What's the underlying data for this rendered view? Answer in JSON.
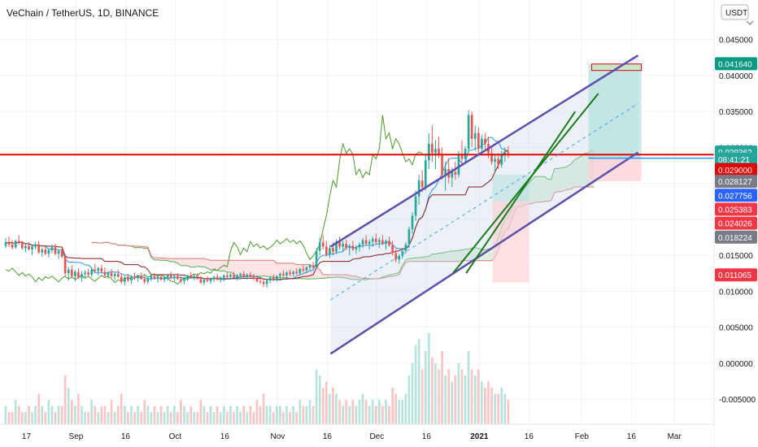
{
  "header": {
    "symbol_line": "VeChain / TetherUS, 1D, BINANCE"
  },
  "currency_button": {
    "label": "USDT",
    "arrow": "chevron-down"
  },
  "x_axis": {
    "ticks": [
      {
        "label": "17",
        "date": "2020-08-17"
      },
      {
        "label": "Sep",
        "date": "2020-09-01"
      },
      {
        "label": "16",
        "date": "2020-09-16"
      },
      {
        "label": "Oct",
        "date": "2020-10-01"
      },
      {
        "label": "16",
        "date": "2020-10-16"
      },
      {
        "label": "Nov",
        "date": "2020-11-01"
      },
      {
        "label": "16",
        "date": "2020-11-16"
      },
      {
        "label": "Dec",
        "date": "2020-12-01"
      },
      {
        "label": "16",
        "date": "2020-12-16"
      },
      {
        "label": "2021",
        "date": "2021-01-01"
      },
      {
        "label": "16",
        "date": "2021-01-16"
      },
      {
        "label": "Feb",
        "date": "2021-02-01"
      },
      {
        "label": "16",
        "date": "2021-02-16"
      },
      {
        "label": "Mar",
        "date": "2021-03-01"
      }
    ]
  },
  "y_axis": {
    "ticks": [
      "0.045000",
      "0.040000",
      "0.035000",
      "0.030000",
      "0.025000",
      "0.020000",
      "0.015000",
      "0.010000",
      "0.005000",
      "0.000000",
      "-0.005000"
    ],
    "range": [
      -0.0085,
      0.0505
    ]
  },
  "price_tags": [
    {
      "label": "0.041640",
      "value": 0.04164,
      "bg": "#089981"
    },
    {
      "label": "0.029362",
      "value": 0.02936,
      "bg": "#26a69a"
    },
    {
      "label": "08:41:21",
      "value": 0.02836,
      "bg": "#26a69a"
    },
    {
      "label": "0.029000",
      "value": 0.0269,
      "bg": "#e00000"
    },
    {
      "label": "0.028127",
      "value": 0.02528,
      "bg": "#787b86"
    },
    {
      "label": "0.027756",
      "value": 0.02334,
      "bg": "#2962ff"
    },
    {
      "label": "0.025383",
      "value": 0.0214,
      "bg": "#f23645"
    },
    {
      "label": "0.024026",
      "value": 0.01946,
      "bg": "#f23645"
    },
    {
      "label": "0.018224",
      "value": 0.01752,
      "bg": "#787b86"
    },
    {
      "label": "0.011065",
      "value": 0.01227,
      "bg": "#f23645"
    }
  ],
  "colors": {
    "up": "#26a69a",
    "down": "#ef5350",
    "support": "#e00000",
    "channel": "#5e4fa8",
    "green_lines": "#1b7a1b",
    "lagging": "#4c9a2a",
    "tenkan": "#2196f3",
    "kijun": "#8b1a1a",
    "cloud_green": "#c8e6c9",
    "cloud_red": "#ffcdd2",
    "target_fill": "#b2dfdb",
    "stop_fill": "#ffcdd2"
  },
  "chart_data": {
    "type": "candlestick",
    "title": "VeChain / TetherUS, 1D, BINANCE",
    "x_start": "2020-08-10",
    "ohlc": [
      [
        0.0163,
        0.0174,
        0.016,
        0.0168
      ],
      [
        0.0168,
        0.0176,
        0.0162,
        0.0165
      ],
      [
        0.0165,
        0.0171,
        0.0158,
        0.0161
      ],
      [
        0.0161,
        0.0172,
        0.0159,
        0.017
      ],
      [
        0.017,
        0.0178,
        0.0165,
        0.0167
      ],
      [
        0.0167,
        0.017,
        0.0158,
        0.016
      ],
      [
        0.016,
        0.0166,
        0.0154,
        0.0163
      ],
      [
        0.0163,
        0.0168,
        0.0157,
        0.0158
      ],
      [
        0.0158,
        0.0165,
        0.015,
        0.0162
      ],
      [
        0.0162,
        0.0169,
        0.0158,
        0.0165
      ],
      [
        0.0165,
        0.017,
        0.0152,
        0.0154
      ],
      [
        0.0154,
        0.0161,
        0.0148,
        0.0158
      ],
      [
        0.0158,
        0.0163,
        0.015,
        0.0152
      ],
      [
        0.0152,
        0.016,
        0.0147,
        0.0157
      ],
      [
        0.0157,
        0.0165,
        0.0153,
        0.0161
      ],
      [
        0.0161,
        0.0166,
        0.015,
        0.0152
      ],
      [
        0.0152,
        0.0158,
        0.0145,
        0.0156
      ],
      [
        0.0156,
        0.016,
        0.0146,
        0.0148
      ],
      [
        0.0148,
        0.0152,
        0.012,
        0.0125
      ],
      [
        0.0125,
        0.0134,
        0.0115,
        0.013
      ],
      [
        0.013,
        0.0136,
        0.0118,
        0.0121
      ],
      [
        0.0121,
        0.013,
        0.0114,
        0.0127
      ],
      [
        0.0127,
        0.0132,
        0.0117,
        0.0119
      ],
      [
        0.0119,
        0.0128,
        0.0113,
        0.0124
      ],
      [
        0.0124,
        0.0129,
        0.0118,
        0.0126
      ],
      [
        0.0126,
        0.0131,
        0.0121,
        0.0123
      ],
      [
        0.0123,
        0.0132,
        0.012,
        0.013
      ],
      [
        0.013,
        0.0138,
        0.0126,
        0.0128
      ],
      [
        0.0128,
        0.0134,
        0.0122,
        0.0132
      ],
      [
        0.0132,
        0.0137,
        0.0125,
        0.0127
      ],
      [
        0.0127,
        0.0133,
        0.012,
        0.0122
      ],
      [
        0.0122,
        0.0129,
        0.0117,
        0.0126
      ],
      [
        0.0126,
        0.0131,
        0.0119,
        0.0121
      ],
      [
        0.0121,
        0.0127,
        0.0115,
        0.0124
      ],
      [
        0.0124,
        0.013,
        0.0119,
        0.012
      ],
      [
        0.012,
        0.0125,
        0.011,
        0.0113
      ],
      [
        0.0113,
        0.0121,
        0.0108,
        0.0119
      ],
      [
        0.0119,
        0.0124,
        0.0113,
        0.0115
      ],
      [
        0.0115,
        0.0122,
        0.011,
        0.012
      ],
      [
        0.012,
        0.0126,
        0.0116,
        0.0118
      ],
      [
        0.0118,
        0.0123,
        0.0113,
        0.0121
      ],
      [
        0.0121,
        0.0126,
        0.0116,
        0.0117
      ],
      [
        0.0117,
        0.0122,
        0.011,
        0.0113
      ],
      [
        0.0113,
        0.012,
        0.011,
        0.0118
      ],
      [
        0.0118,
        0.0124,
        0.0114,
        0.0121
      ],
      [
        0.0121,
        0.0125,
        0.0116,
        0.0117
      ],
      [
        0.0117,
        0.0122,
        0.0112,
        0.012
      ],
      [
        0.012,
        0.0124,
        0.0115,
        0.0116
      ],
      [
        0.0116,
        0.0121,
        0.0112,
        0.0119
      ],
      [
        0.0119,
        0.0124,
        0.0115,
        0.0122
      ],
      [
        0.0122,
        0.0127,
        0.0117,
        0.0118
      ],
      [
        0.0118,
        0.0123,
        0.0114,
        0.0121
      ],
      [
        0.0121,
        0.0125,
        0.0116,
        0.0117
      ],
      [
        0.0117,
        0.0121,
        0.0111,
        0.0114
      ],
      [
        0.0114,
        0.012,
        0.011,
        0.0118
      ],
      [
        0.0118,
        0.0123,
        0.0114,
        0.0122
      ],
      [
        0.0122,
        0.0127,
        0.0117,
        0.0119
      ],
      [
        0.0119,
        0.0124,
        0.0115,
        0.0121
      ],
      [
        0.0121,
        0.0125,
        0.0116,
        0.0117
      ],
      [
        0.0117,
        0.0121,
        0.011,
        0.0112
      ],
      [
        0.0112,
        0.0118,
        0.0108,
        0.0116
      ],
      [
        0.0116,
        0.0121,
        0.0112,
        0.0114
      ],
      [
        0.0114,
        0.0119,
        0.011,
        0.0117
      ],
      [
        0.0117,
        0.0122,
        0.0113,
        0.012
      ],
      [
        0.012,
        0.0124,
        0.0115,
        0.0116
      ],
      [
        0.0116,
        0.0121,
        0.0112,
        0.0119
      ],
      [
        0.0119,
        0.0123,
        0.0114,
        0.0122
      ],
      [
        0.0122,
        0.0126,
        0.0118,
        0.012
      ],
      [
        0.012,
        0.0125,
        0.0116,
        0.0123
      ],
      [
        0.0123,
        0.0127,
        0.0118,
        0.0119
      ],
      [
        0.0119,
        0.0124,
        0.0115,
        0.0122
      ],
      [
        0.0122,
        0.0126,
        0.0117,
        0.0124
      ],
      [
        0.0124,
        0.0128,
        0.0119,
        0.0121
      ],
      [
        0.0121,
        0.0125,
        0.0116,
        0.0123
      ],
      [
        0.0123,
        0.0127,
        0.0119,
        0.012
      ],
      [
        0.012,
        0.0124,
        0.0115,
        0.0118
      ],
      [
        0.0118,
        0.0122,
        0.0112,
        0.0114
      ],
      [
        0.0114,
        0.012,
        0.011,
        0.0113
      ],
      [
        0.0113,
        0.0118,
        0.0106,
        0.011
      ],
      [
        0.011,
        0.0117,
        0.0105,
        0.0115
      ],
      [
        0.0115,
        0.0121,
        0.0111,
        0.0119
      ],
      [
        0.0119,
        0.0123,
        0.0114,
        0.0116
      ],
      [
        0.0116,
        0.0122,
        0.0113,
        0.0121
      ],
      [
        0.0121,
        0.0126,
        0.0117,
        0.0124
      ],
      [
        0.0124,
        0.0129,
        0.012,
        0.0122
      ],
      [
        0.0122,
        0.0128,
        0.0118,
        0.0126
      ],
      [
        0.0126,
        0.013,
        0.0121,
        0.0124
      ],
      [
        0.0124,
        0.0129,
        0.012,
        0.0127
      ],
      [
        0.0127,
        0.0132,
        0.0123,
        0.0125
      ],
      [
        0.0125,
        0.0133,
        0.0122,
        0.0131
      ],
      [
        0.0131,
        0.0136,
        0.0126,
        0.0129
      ],
      [
        0.0129,
        0.0135,
        0.0125,
        0.0133
      ],
      [
        0.0133,
        0.0138,
        0.0128,
        0.0136
      ],
      [
        0.0136,
        0.0141,
        0.0131,
        0.0134
      ],
      [
        0.0134,
        0.016,
        0.0132,
        0.0156
      ],
      [
        0.0156,
        0.0175,
        0.015,
        0.0168
      ],
      [
        0.0168,
        0.0178,
        0.0158,
        0.0162
      ],
      [
        0.0162,
        0.017,
        0.0148,
        0.0151
      ],
      [
        0.0151,
        0.0164,
        0.0146,
        0.016
      ],
      [
        0.016,
        0.0168,
        0.015,
        0.0155
      ],
      [
        0.0155,
        0.0172,
        0.0152,
        0.0169
      ],
      [
        0.0169,
        0.0176,
        0.0158,
        0.0162
      ],
      [
        0.0162,
        0.017,
        0.0155,
        0.0166
      ],
      [
        0.0166,
        0.0172,
        0.0157,
        0.016
      ],
      [
        0.016,
        0.0166,
        0.015,
        0.0163
      ],
      [
        0.0163,
        0.017,
        0.0156,
        0.0158
      ],
      [
        0.0158,
        0.0164,
        0.0152,
        0.0161
      ],
      [
        0.0161,
        0.0168,
        0.0155,
        0.0165
      ],
      [
        0.0165,
        0.0174,
        0.016,
        0.0171
      ],
      [
        0.0171,
        0.0178,
        0.0163,
        0.0166
      ],
      [
        0.0166,
        0.0172,
        0.0158,
        0.0169
      ],
      [
        0.0169,
        0.0176,
        0.0162,
        0.0173
      ],
      [
        0.0173,
        0.018,
        0.0165,
        0.0168
      ],
      [
        0.0168,
        0.0175,
        0.016,
        0.0171
      ],
      [
        0.0171,
        0.0178,
        0.0164,
        0.0166
      ],
      [
        0.0166,
        0.0172,
        0.0158,
        0.017
      ],
      [
        0.017,
        0.0176,
        0.0162,
        0.0164
      ],
      [
        0.0164,
        0.017,
        0.015,
        0.0153
      ],
      [
        0.0153,
        0.0158,
        0.014,
        0.0144
      ],
      [
        0.0144,
        0.0152,
        0.0138,
        0.0149
      ],
      [
        0.0149,
        0.0158,
        0.0145,
        0.0156
      ],
      [
        0.0156,
        0.0168,
        0.0152,
        0.0165
      ],
      [
        0.0165,
        0.019,
        0.016,
        0.0186
      ],
      [
        0.0186,
        0.021,
        0.018,
        0.0205
      ],
      [
        0.0205,
        0.024,
        0.0198,
        0.0232
      ],
      [
        0.0232,
        0.0262,
        0.022,
        0.0254
      ],
      [
        0.0254,
        0.0268,
        0.0238,
        0.0245
      ],
      [
        0.0245,
        0.029,
        0.024,
        0.0282
      ],
      [
        0.0282,
        0.032,
        0.027,
        0.0305
      ],
      [
        0.0305,
        0.033,
        0.028,
        0.0292
      ],
      [
        0.0292,
        0.031,
        0.027,
        0.0298
      ],
      [
        0.0298,
        0.0315,
        0.0285,
        0.029
      ],
      [
        0.029,
        0.03,
        0.0255,
        0.0262
      ],
      [
        0.0262,
        0.028,
        0.024,
        0.027
      ],
      [
        0.027,
        0.0285,
        0.025,
        0.0258
      ],
      [
        0.0258,
        0.0272,
        0.0245,
        0.0266
      ],
      [
        0.0266,
        0.028,
        0.0255,
        0.0262
      ],
      [
        0.0262,
        0.0295,
        0.0258,
        0.029
      ],
      [
        0.029,
        0.031,
        0.0275,
        0.0284
      ],
      [
        0.0284,
        0.0302,
        0.0278,
        0.0298
      ],
      [
        0.0298,
        0.0352,
        0.0292,
        0.0345
      ],
      [
        0.0345,
        0.035,
        0.03,
        0.0312
      ],
      [
        0.0312,
        0.033,
        0.0295,
        0.032
      ],
      [
        0.032,
        0.0328,
        0.029,
        0.0298
      ],
      [
        0.0298,
        0.0318,
        0.0292,
        0.0312
      ],
      [
        0.0312,
        0.032,
        0.0298,
        0.0305
      ],
      [
        0.0305,
        0.0315,
        0.0285,
        0.0292
      ],
      [
        0.0292,
        0.0302,
        0.0276,
        0.028
      ],
      [
        0.028,
        0.029,
        0.0266,
        0.0284
      ],
      [
        0.0284,
        0.0292,
        0.027,
        0.0276
      ],
      [
        0.0276,
        0.0295,
        0.0272,
        0.029
      ],
      [
        0.029,
        0.03,
        0.028,
        0.0294
      ],
      [
        0.0294,
        0.0302,
        0.0285,
        0.0292
      ]
    ],
    "channel_upper": [
      [
        "2020-11-17",
        0.0162
      ],
      [
        "2021-02-18",
        0.0428
      ]
    ],
    "channel_lower": [
      [
        "2020-11-17",
        0.0013
      ],
      [
        "2021-02-18",
        0.0293
      ]
    ],
    "channel_mid": [
      [
        "2020-11-17",
        0.0088
      ],
      [
        "2021-02-18",
        0.0361
      ]
    ],
    "green_trendlines": [
      [
        [
          "2020-12-24",
          0.0125
        ],
        [
          "2021-02-06",
          0.0375
        ]
      ],
      [
        [
          "2020-12-28",
          0.0125
        ],
        [
          "2021-01-30",
          0.035
        ]
      ]
    ],
    "support_level": 0.029,
    "position": {
      "entry": 0.0285,
      "target": 0.0416,
      "stop": 0.0253,
      "start": "2021-02-03",
      "end": "2021-02-19"
    },
    "target_box": {
      "low": 0.0407,
      "high": 0.0416,
      "start": "2021-02-04",
      "end": "2021-02-19"
    },
    "volume": [
      3,
      2,
      2,
      4,
      3,
      2,
      2,
      3,
      2,
      3,
      5,
      3,
      2,
      4,
      3,
      2,
      3,
      3,
      8,
      6,
      4,
      3,
      5,
      3,
      2,
      2,
      4,
      3,
      2,
      3,
      3,
      2,
      4,
      2,
      3,
      5,
      3,
      2,
      3,
      2,
      3,
      2,
      4,
      3,
      2,
      3,
      2,
      3,
      2,
      3,
      2,
      3,
      2,
      4,
      3,
      2,
      3,
      2,
      2,
      4,
      3,
      2,
      3,
      2,
      3,
      2,
      3,
      2,
      3,
      2,
      3,
      2,
      3,
      2,
      3,
      2,
      4,
      3,
      5,
      3,
      3,
      2,
      3,
      3,
      2,
      3,
      2,
      3,
      2,
      4,
      3,
      3,
      4,
      3,
      9,
      8,
      6,
      7,
      5,
      6,
      5,
      4,
      3,
      4,
      3,
      4,
      3,
      4,
      5,
      4,
      3,
      4,
      3,
      4,
      3,
      4,
      3,
      6,
      5,
      4,
      4,
      5,
      8,
      10,
      13,
      14,
      9,
      12,
      15,
      11,
      10,
      9,
      12,
      8,
      9,
      7,
      8,
      10,
      9,
      8,
      12,
      9,
      8,
      9,
      7,
      6,
      7,
      6,
      5,
      5,
      6,
      5,
      4
    ]
  }
}
